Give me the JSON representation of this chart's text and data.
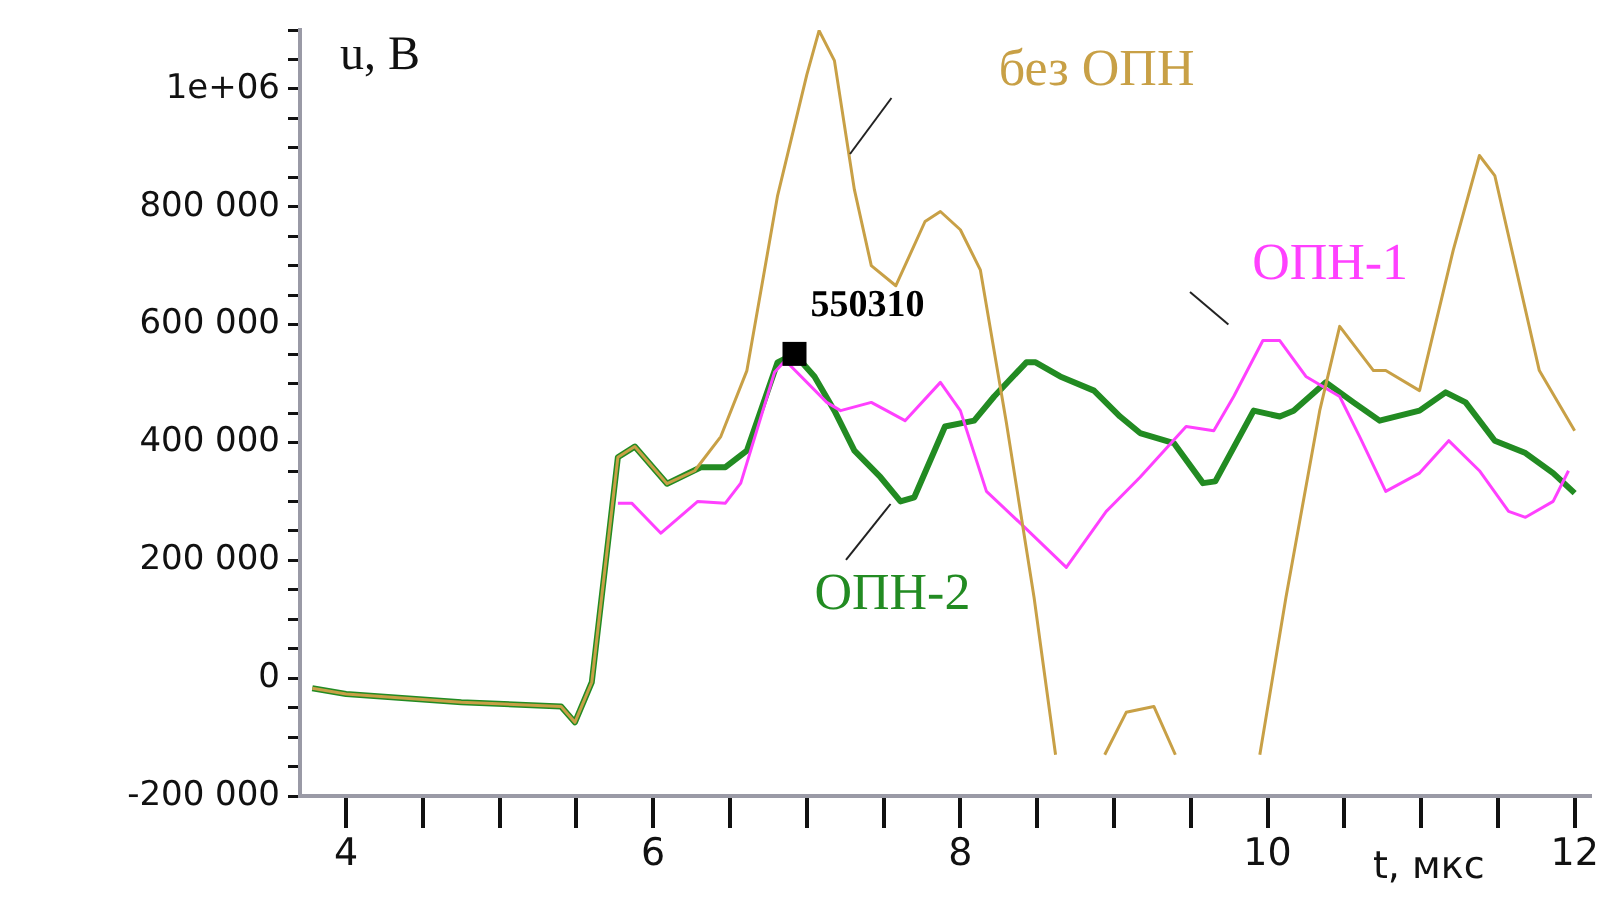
{
  "chart_data": {
    "type": "line",
    "xlabel": "t, мкс",
    "ylabel": "u, В",
    "xlim": [
      3.7,
      12.1
    ],
    "xticks": [
      4,
      {
        "value": 4.5,
        "label": null
      },
      {
        "value": 5,
        "label": null
      },
      {
        "value": 5.5,
        "label": null
      },
      6,
      {
        "value": 6.5,
        "label": null
      },
      {
        "value": 7,
        "label": null
      },
      {
        "value": 7.5,
        "label": null
      },
      8,
      {
        "value": 8.5,
        "label": null
      },
      {
        "value": 9,
        "label": null
      },
      {
        "value": 9.5,
        "label": null
      },
      10,
      {
        "value": 10.5,
        "label": null
      },
      {
        "value": 11,
        "label": null
      },
      {
        "value": 11.5,
        "label": null
      },
      12
    ],
    "ylim": [
      -200000,
      1100000
    ],
    "yticks": [
      {
        "value": -200000,
        "label": "-200 000"
      },
      {
        "value": -150000,
        "label": null
      },
      {
        "value": -100000,
        "label": null
      },
      {
        "value": -50000,
        "label": null
      },
      0,
      {
        "value": 50000,
        "label": null
      },
      {
        "value": 100000,
        "label": null
      },
      {
        "value": 150000,
        "label": null
      },
      {
        "value": 200000,
        "label": "200 000"
      },
      {
        "value": 250000,
        "label": null
      },
      {
        "value": 300000,
        "label": null
      },
      {
        "value": 350000,
        "label": null
      },
      {
        "value": 400000,
        "label": "400 000"
      },
      {
        "value": 450000,
        "label": null
      },
      {
        "value": 500000,
        "label": null
      },
      {
        "value": 550000,
        "label": null
      },
      {
        "value": 600000,
        "label": "600 000"
      },
      {
        "value": 650000,
        "label": null
      },
      {
        "value": 700000,
        "label": null
      },
      {
        "value": 750000,
        "label": null
      },
      {
        "value": 800000,
        "label": "800 000"
      },
      {
        "value": 850000,
        "label": null
      },
      {
        "value": 900000,
        "label": null
      },
      {
        "value": 950000,
        "label": null
      },
      {
        "value": 1000000,
        "label": "1e+06"
      },
      {
        "value": 1050000,
        "label": null
      },
      {
        "value": 1100000,
        "label": null
      }
    ],
    "grid": false,
    "legend": false,
    "marker": "none",
    "line_style": "solid",
    "annotations": [
      {
        "text": "550310",
        "x": 6.92,
        "y": 550310
      }
    ],
    "series": [
      {
        "name": "без ОПН",
        "color": "#c8a046",
        "x": [
          3.78,
          4,
          4.75,
          5.4,
          5.49,
          5.6,
          5.77,
          5.88,
          6.09,
          6.27,
          6.44,
          6.61,
          6.81,
          7.0,
          7.08,
          7.18,
          7.31,
          7.42,
          7.58,
          7.77,
          7.87,
          8,
          8.13,
          8.3,
          8.48,
          8.62,
          8.78,
          8.94,
          9.08,
          9.26,
          9.4,
          9.7,
          9.95,
          10.12,
          10.34,
          10.47,
          10.69,
          10.77,
          10.99,
          11.21,
          11.38,
          11.48,
          11.77,
          12
        ],
        "values": [
          -17000,
          -27000,
          -41000,
          -48000,
          -75000,
          -7000,
          375000,
          393000,
          330000,
          352000,
          410000,
          522000,
          819000,
          1024000,
          1099000,
          1048000,
          829000,
          700000,
          666000,
          775000,
          792000,
          761000,
          693000,
          433000,
          137000,
          -130000,
          null,
          -130000,
          -58000,
          -48000,
          -130000,
          null,
          -130000,
          137000,
          454000,
          597000,
          522000,
          522000,
          488000,
          727000,
          887000,
          853000,
          522000,
          420000
        ]
      },
      {
        "name": "ОПН-1",
        "color": "#ff40ff",
        "x": [
          5.77,
          5.86,
          6.05,
          6.29,
          6.47,
          6.57,
          6.79,
          6.86,
          7.13,
          7.22,
          7.42,
          7.52,
          7.64,
          7.87,
          8,
          8.17,
          8.39,
          8.69,
          8.95,
          9.17,
          9.47,
          9.65,
          9.78,
          9.97,
          10.08,
          10.25,
          10.47,
          10.6,
          10.77,
          10.99,
          11.18,
          11.38,
          11.57,
          11.68,
          11.86,
          11.96
        ],
        "values": [
          297000,
          297000,
          246000,
          300000,
          297000,
          331000,
          519000,
          539000,
          468000,
          454000,
          468000,
          454000,
          437000,
          502000,
          454000,
          317000,
          263000,
          188000,
          283000,
          341000,
          427000,
          420000,
          478000,
          573000,
          573000,
          512000,
          478000,
          410000,
          317000,
          348000,
          403000,
          352000,
          283000,
          273000,
          300000,
          352000
        ]
      },
      {
        "name": "ОПН-2",
        "color": "#228b22",
        "x": [
          3.78,
          4,
          4.75,
          5.4,
          5.49,
          5.6,
          5.77,
          5.88,
          6.09,
          6.31,
          6.47,
          6.61,
          6.81,
          6.92,
          7.05,
          7.18,
          7.31,
          7.48,
          7.61,
          7.7,
          7.9,
          8.09,
          8.22,
          8.43,
          8.49,
          8.65,
          8.87,
          9.04,
          9.17,
          9.39,
          9.58,
          9.66,
          9.91,
          10.08,
          10.17,
          10.38,
          10.56,
          10.73,
          10.99,
          11.16,
          11.29,
          11.48,
          11.68,
          11.86,
          12
        ],
        "values": [
          -17000,
          -27000,
          -41000,
          -48000,
          -75000,
          -7000,
          375000,
          393000,
          330000,
          358000,
          358000,
          386000,
          536000,
          550310,
          512000,
          454000,
          386000,
          341000,
          300000,
          307000,
          427000,
          437000,
          478000,
          536000,
          536000,
          512000,
          488000,
          444000,
          416000,
          399000,
          331000,
          334000,
          454000,
          444000,
          454000,
          502000,
          468000,
          437000,
          454000,
          485000,
          468000,
          403000,
          382000,
          348000,
          314000
        ]
      }
    ]
  }
}
